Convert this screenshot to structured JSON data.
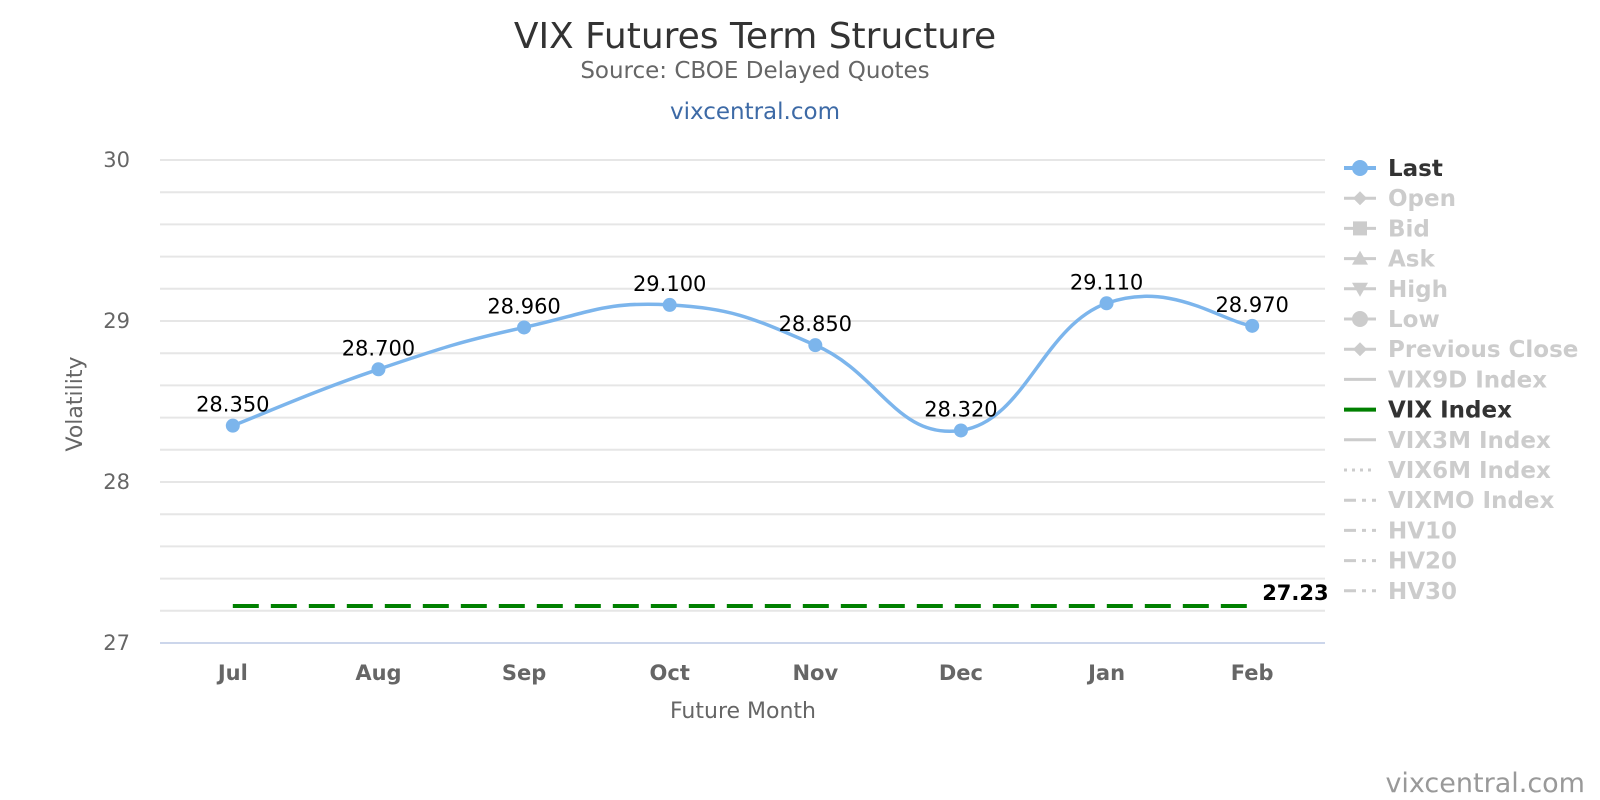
{
  "chart_data": {
    "type": "line",
    "title": "VIX Futures Term Structure",
    "subtitle": "Source: CBOE Delayed Quotes",
    "link": "vixcentral.com",
    "credit": "vixcentral.com",
    "xlabel": "Future Month",
    "ylabel": "Volatility",
    "ylim": [
      27,
      30
    ],
    "y_ticks": [
      27,
      28,
      29,
      30
    ],
    "categories": [
      "Jul",
      "Aug",
      "Sep",
      "Oct",
      "Nov",
      "Dec",
      "Jan",
      "Feb"
    ],
    "grid": true,
    "legend_position": "right",
    "series": [
      {
        "name": "Last",
        "values": [
          28.35,
          28.7,
          28.96,
          29.1,
          28.85,
          28.32,
          29.11,
          28.97
        ],
        "labels": [
          "28.350",
          "28.700",
          "28.960",
          "29.100",
          "28.850",
          "28.320",
          "29.110",
          "28.970"
        ],
        "color": "#7cb5ec",
        "style": "spline"
      },
      {
        "name": "VIX Index",
        "value": 27.23,
        "label": "27.23",
        "color": "#008000",
        "style": "dashed"
      }
    ],
    "legend": [
      {
        "name": "Last",
        "active": true,
        "symbol": "circle",
        "color": "#7cb5ec"
      },
      {
        "name": "Open",
        "active": false,
        "symbol": "diamond",
        "color": "#cccccc"
      },
      {
        "name": "Bid",
        "active": false,
        "symbol": "square",
        "color": "#cccccc"
      },
      {
        "name": "Ask",
        "active": false,
        "symbol": "triangle",
        "color": "#cccccc"
      },
      {
        "name": "High",
        "active": false,
        "symbol": "triangle-down",
        "color": "#cccccc"
      },
      {
        "name": "Low",
        "active": false,
        "symbol": "circle",
        "color": "#cccccc"
      },
      {
        "name": "Previous Close",
        "active": false,
        "symbol": "diamond",
        "color": "#cccccc"
      },
      {
        "name": "VIX9D Index",
        "active": false,
        "symbol": "line",
        "color": "#cccccc"
      },
      {
        "name": "VIX Index",
        "active": true,
        "symbol": "line",
        "color": "#008000"
      },
      {
        "name": "VIX3M Index",
        "active": false,
        "symbol": "line",
        "color": "#cccccc"
      },
      {
        "name": "VIX6M Index",
        "active": false,
        "symbol": "dotted",
        "color": "#cccccc"
      },
      {
        "name": "VIXMO Index",
        "active": false,
        "symbol": "dashdot",
        "color": "#cccccc"
      },
      {
        "name": "HV10",
        "active": false,
        "symbol": "dashdot",
        "color": "#cccccc"
      },
      {
        "name": "HV20",
        "active": false,
        "symbol": "dashdot",
        "color": "#cccccc"
      },
      {
        "name": "HV30",
        "active": false,
        "symbol": "dashdot",
        "color": "#cccccc"
      }
    ],
    "legend_active_text_color": "#333333",
    "legend_inactive_text_color": "#cccccc"
  }
}
